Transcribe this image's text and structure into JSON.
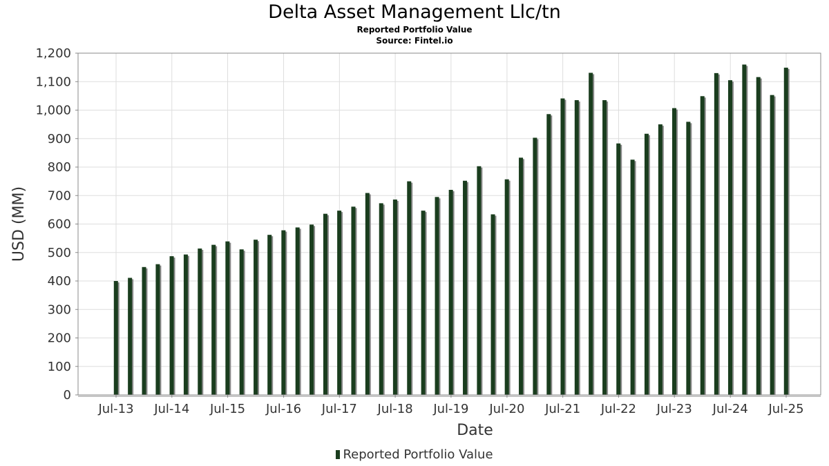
{
  "chart_data": {
    "type": "bar",
    "title": "Delta Asset Management Llc/tn",
    "subtitle": "Reported Portfolio Value",
    "source": "Source: Fintel.io",
    "xlabel": "Date",
    "ylabel": "USD (MM)",
    "ylim": [
      0,
      1200
    ],
    "yticks": [
      0,
      100,
      200,
      300,
      400,
      500,
      600,
      700,
      800,
      900,
      1000,
      1100,
      1200
    ],
    "ytick_labels": [
      "0",
      "100",
      "200",
      "300",
      "400",
      "500",
      "600",
      "700",
      "800",
      "900",
      "1,000",
      "1,100",
      "1,200"
    ],
    "xtick_labels": [
      "Jul-13",
      "Jul-14",
      "Jul-15",
      "Jul-16",
      "Jul-17",
      "Jul-18",
      "Jul-19",
      "Jul-20",
      "Jul-21",
      "Jul-22",
      "Jul-23",
      "Jul-24",
      "Jul-25"
    ],
    "grid": true,
    "legend_position": "bottom-center",
    "series": [
      {
        "name": "Reported Portfolio Value",
        "color": "#1a3d1e",
        "x": [
          "2013-06-30",
          "2013-09-30",
          "2013-12-31",
          "2014-03-31",
          "2014-06-30",
          "2014-09-30",
          "2014-12-31",
          "2015-03-31",
          "2015-06-30",
          "2015-09-30",
          "2015-12-31",
          "2016-03-31",
          "2016-06-30",
          "2016-09-30",
          "2016-12-31",
          "2017-03-31",
          "2017-06-30",
          "2017-09-30",
          "2017-12-31",
          "2018-03-31",
          "2018-06-30",
          "2018-09-30",
          "2018-12-31",
          "2019-03-31",
          "2019-06-30",
          "2019-09-30",
          "2019-12-31",
          "2020-03-31",
          "2020-06-30",
          "2020-09-30",
          "2020-12-31",
          "2021-03-31",
          "2021-06-30",
          "2021-09-30",
          "2021-12-31",
          "2022-03-31",
          "2022-06-30",
          "2022-09-30",
          "2022-12-31",
          "2023-03-31",
          "2023-06-30",
          "2023-09-30",
          "2023-12-31",
          "2024-03-31",
          "2024-06-30",
          "2024-09-30",
          "2024-12-31",
          "2025-03-31",
          "2025-06-30"
        ],
        "values": [
          400,
          411,
          449,
          459,
          487,
          493,
          514,
          527,
          539,
          511,
          545,
          562,
          578,
          588,
          598,
          636,
          647,
          661,
          709,
          673,
          686,
          750,
          647,
          695,
          720,
          752,
          803,
          634,
          757,
          833,
          903,
          986,
          1041,
          1035,
          1131,
          1035,
          883,
          826,
          917,
          950,
          1007,
          959,
          1049,
          1130,
          1105,
          1160,
          1116,
          1053,
          1149
        ]
      }
    ]
  }
}
